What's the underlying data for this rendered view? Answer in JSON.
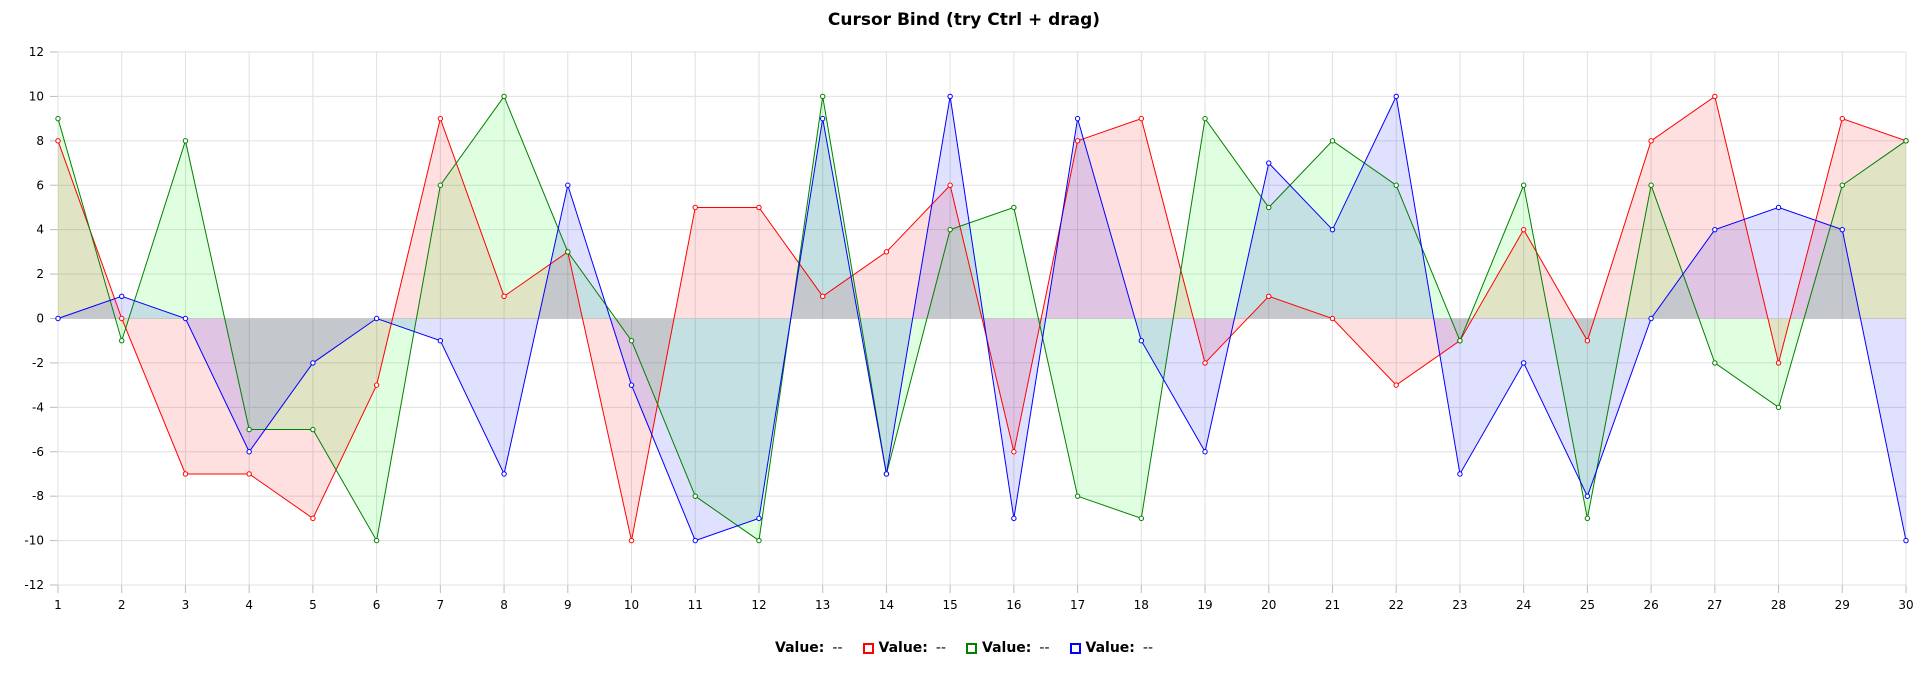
{
  "chart_data": {
    "type": "line",
    "title": "Cursor Bind (try Ctrl + drag)",
    "x": [
      1,
      2,
      3,
      4,
      5,
      6,
      7,
      8,
      9,
      10,
      11,
      12,
      13,
      14,
      15,
      16,
      17,
      18,
      19,
      20,
      21,
      22,
      23,
      24,
      25,
      26,
      27,
      28,
      29,
      30
    ],
    "ylim": [
      -12,
      12
    ],
    "yticks": [
      12,
      10,
      8,
      6,
      4,
      2,
      0,
      -2,
      -4,
      -6,
      -8,
      -10,
      -12
    ],
    "grid": true,
    "fill_to_zero": true,
    "legend_position": "bottom",
    "series": [
      {
        "color": "#ff0000",
        "fill": "rgba(255,0,0,0.12)",
        "values": [
          8,
          0,
          -7,
          -7,
          -9,
          -3,
          9,
          1,
          3,
          -10,
          5,
          5,
          1,
          3,
          6,
          -6,
          8,
          9,
          -2,
          1,
          0,
          -3,
          -1,
          4,
          -1,
          8,
          10,
          -2,
          9,
          8
        ]
      },
      {
        "color": "#008000",
        "fill": "rgba(0,255,0,0.12)",
        "values": [
          9,
          -1,
          8,
          -5,
          -5,
          -10,
          6,
          10,
          3,
          -1,
          -8,
          -10,
          10,
          -7,
          4,
          5,
          -8,
          -9,
          9,
          5,
          8,
          6,
          -1,
          6,
          -9,
          6,
          -2,
          -4,
          6,
          8
        ]
      },
      {
        "color": "#0000ff",
        "fill": "rgba(0,0,255,0.12)",
        "values": [
          0,
          1,
          0,
          -6,
          -2,
          0,
          -1,
          -7,
          6,
          -3,
          -10,
          -9,
          9,
          -7,
          10,
          -9,
          9,
          -1,
          -6,
          7,
          4,
          10,
          -7,
          -2,
          -8,
          0,
          4,
          5,
          4,
          -10
        ]
      }
    ]
  },
  "legend": {
    "items": [
      {
        "label": "Value:",
        "value": "--",
        "color": ""
      },
      {
        "label": "Value:",
        "value": "--",
        "color": "#ff0000"
      },
      {
        "label": "Value:",
        "value": "--",
        "color": "#008000"
      },
      {
        "label": "Value:",
        "value": "--",
        "color": "#0000ff"
      }
    ]
  }
}
